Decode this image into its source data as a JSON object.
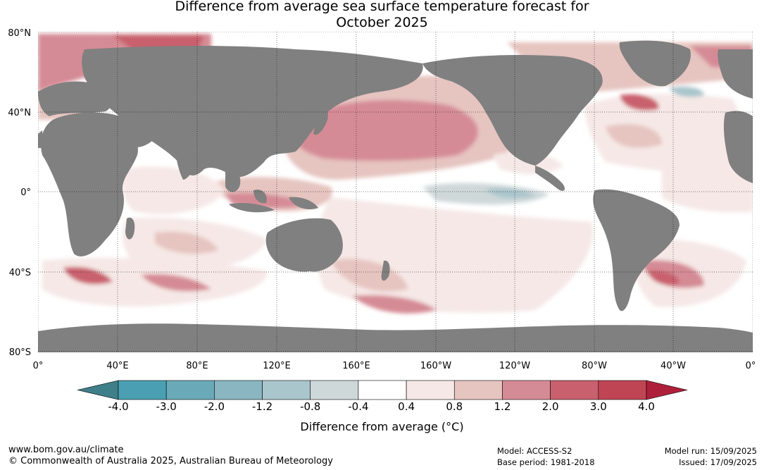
{
  "title": {
    "line1": "Difference from average sea surface temperature forecast for",
    "line2": "October 2025"
  },
  "map": {
    "lat_labels": [
      "80°N",
      "40°N",
      "0°",
      "40°S",
      "80°S"
    ],
    "lon_labels": [
      "0°",
      "40°E",
      "80°E",
      "120°E",
      "160°E",
      "160°W",
      "120°W",
      "80°W",
      "40°W",
      "0°"
    ],
    "land_color": "#808080",
    "ocean_color": "#ffffff"
  },
  "colorbar": {
    "tick_labels": [
      "-4.0",
      "-3.0",
      "-2.0",
      "-1.2",
      "-0.8",
      "-0.4",
      "0.4",
      "0.8",
      "1.2",
      "2.0",
      "3.0",
      "4.0"
    ],
    "colors": [
      "#3f7f89",
      "#4aa0b2",
      "#6aaab8",
      "#8ab6c2",
      "#a9c6cc",
      "#cfd8d9",
      "#ffffff",
      "#f5e8e6",
      "#e6c4c0",
      "#d58b95",
      "#c9606d",
      "#bf4555",
      "#ad1f3a"
    ],
    "label": "Difference from average (°C)"
  },
  "footer": {
    "url": "www.bom.gov.au/climate",
    "copyright": "© Commonwealth of Australia 2025, Australian Bureau of Meteorology",
    "model": "Model: ACCESS-S2",
    "base_period": "Base period: 1981-2018",
    "model_run": "Model run: 15/09/2025",
    "issued": "Issued: 17/09/2025"
  }
}
